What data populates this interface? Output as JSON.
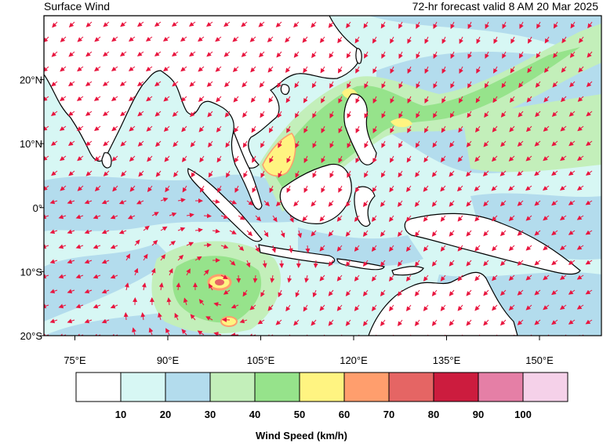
{
  "header": {
    "title": "Surface Wind",
    "valid_text": "72-hr forecast valid 8 AM 20 Mar 2025"
  },
  "axes": {
    "x_ticks": [
      {
        "lon": 75,
        "label": "75°E"
      },
      {
        "lon": 90,
        "label": "90°E"
      },
      {
        "lon": 105,
        "label": "105°E"
      },
      {
        "lon": 120,
        "label": "120°E"
      },
      {
        "lon": 135,
        "label": "135°E"
      },
      {
        "lon": 150,
        "label": "150°E"
      }
    ],
    "y_ticks": [
      {
        "lat": 20,
        "label": "20°N"
      },
      {
        "lat": 10,
        "label": "10°N"
      },
      {
        "lat": 0,
        "label": "0°"
      },
      {
        "lat": -10,
        "label": "10°S"
      },
      {
        "lat": -20,
        "label": "20°S"
      }
    ],
    "lon_range": [
      70,
      160
    ],
    "lat_range": [
      -20,
      30
    ]
  },
  "legend": {
    "title": "Wind Speed (km/h)",
    "bins": [
      {
        "label": "10",
        "color": "#ffffff"
      },
      {
        "label": "20",
        "color": "#d7f7f4"
      },
      {
        "label": "30",
        "color": "#b3dced"
      },
      {
        "label": "40",
        "color": "#c3efba"
      },
      {
        "label": "50",
        "color": "#96e38b"
      },
      {
        "label": "60",
        "color": "#fff481"
      },
      {
        "label": "70",
        "color": "#ff9e6d"
      },
      {
        "label": "80",
        "color": "#e56564"
      },
      {
        "label": "90",
        "color": "#cc1c3e"
      },
      {
        "label": "100",
        "color": "#e57fa6"
      },
      {
        "label": "",
        "color": "#f5d1e9"
      }
    ]
  },
  "colors": {
    "arrow": "#e8163f",
    "coast": "#000000"
  }
}
